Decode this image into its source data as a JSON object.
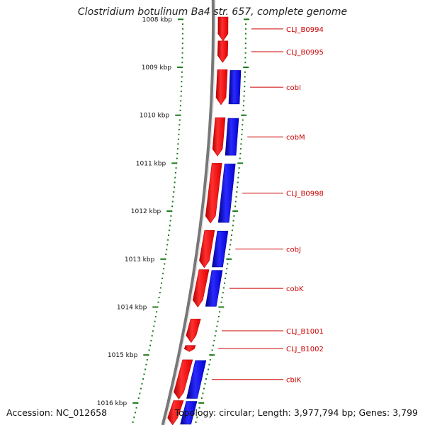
{
  "header": {
    "title": "Clostridium botulinum Ba4 str. 657, complete genome"
  },
  "footer": {
    "accession": "Accession: NC_012658",
    "summary": "Topology: circular; Length: 3,977,794 bp; Genes: 3,799"
  },
  "colors": {
    "forward_strand": "#ff0000",
    "reverse_strand": "#0000ff",
    "backbone": "#777777",
    "tick": "#1a7a1a",
    "gene_label": "#cc0000"
  },
  "ruler": {
    "unit": "kbp",
    "major_ticks": [
      {
        "kbp": 1008,
        "label": "1008 kbp"
      },
      {
        "kbp": 1009,
        "label": "1009 kbp"
      },
      {
        "kbp": 1010,
        "label": "1010 kbp"
      },
      {
        "kbp": 1011,
        "label": "1011 kbp"
      },
      {
        "kbp": 1012,
        "label": "1012 kbp"
      },
      {
        "kbp": 1013,
        "label": "1013 kbp"
      },
      {
        "kbp": 1014,
        "label": "1014 kbp"
      },
      {
        "kbp": 1015,
        "label": "1015 kbp"
      },
      {
        "kbp": 1016,
        "label": "1016 kbp"
      }
    ]
  },
  "genes": [
    {
      "name": "CLJ_B0994",
      "start_kbp": 1007.6,
      "end_kbp": 1008.45,
      "forward": true,
      "reverse": false
    },
    {
      "name": "CLJ_B0995",
      "start_kbp": 1008.45,
      "end_kbp": 1008.9,
      "forward": true,
      "reverse": false
    },
    {
      "name": "cobI",
      "start_kbp": 1009.05,
      "end_kbp": 1009.78,
      "forward": true,
      "reverse": true
    },
    {
      "name": "cobM",
      "start_kbp": 1010.05,
      "end_kbp": 1010.85,
      "forward": true,
      "reverse": true
    },
    {
      "name": "CLJ_B0998",
      "start_kbp": 1011.0,
      "end_kbp": 1012.25,
      "forward": true,
      "reverse": true
    },
    {
      "name": "cobJ",
      "start_kbp": 1012.4,
      "end_kbp": 1013.18,
      "forward": true,
      "reverse": true
    },
    {
      "name": "cobK",
      "start_kbp": 1013.22,
      "end_kbp": 1014.0,
      "forward": true,
      "reverse": true
    },
    {
      "name": "CLJ_B1001",
      "start_kbp": 1014.25,
      "end_kbp": 1014.74,
      "forward": true,
      "reverse": false
    },
    {
      "name": "CLJ_B1002",
      "start_kbp": 1014.8,
      "end_kbp": 1014.93,
      "forward": true,
      "reverse": false
    },
    {
      "name": "cbiK",
      "start_kbp": 1015.1,
      "end_kbp": 1015.92,
      "forward": true,
      "reverse": true
    },
    {
      "name": "",
      "start_kbp": 1015.95,
      "end_kbp": 1016.5,
      "forward": true,
      "reverse": true
    }
  ]
}
